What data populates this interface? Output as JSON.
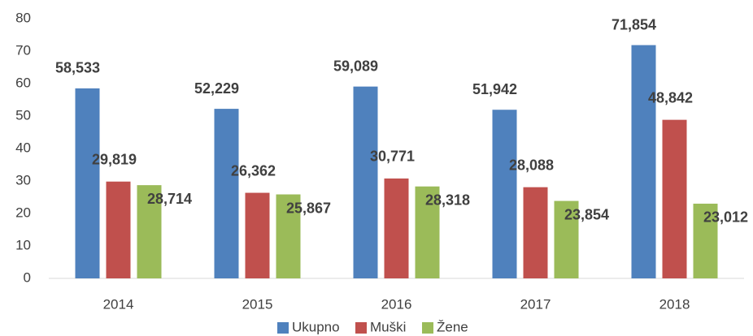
{
  "chart_data": {
    "type": "bar",
    "categories": [
      "2014",
      "2015",
      "2016",
      "2017",
      "2018"
    ],
    "series": [
      {
        "name": "Ukupno",
        "color": "#4f81bd",
        "values": [
          58.533,
          52.229,
          59.089,
          51.942,
          71.854
        ],
        "value_labels": [
          "58,533",
          "52,229",
          "59,089",
          "51,942",
          "71,854"
        ]
      },
      {
        "name": "Muški",
        "color": "#c0504d",
        "values": [
          29.819,
          26.362,
          30.771,
          28.088,
          48.842
        ],
        "value_labels": [
          "29,819",
          "26,362",
          "30,771",
          "28,088",
          "48,842"
        ]
      },
      {
        "name": "Žene",
        "color": "#9bbb59",
        "values": [
          28.714,
          25.867,
          28.318,
          23.854,
          23.012
        ],
        "value_labels": [
          "28,714",
          "25,867",
          "28,318",
          "23,854",
          "23,012"
        ]
      }
    ],
    "ylim": [
      0,
      80
    ],
    "yticks": [
      0,
      10,
      20,
      30,
      40,
      50,
      60,
      70,
      80
    ],
    "grid": false,
    "legend": "bottom"
  }
}
